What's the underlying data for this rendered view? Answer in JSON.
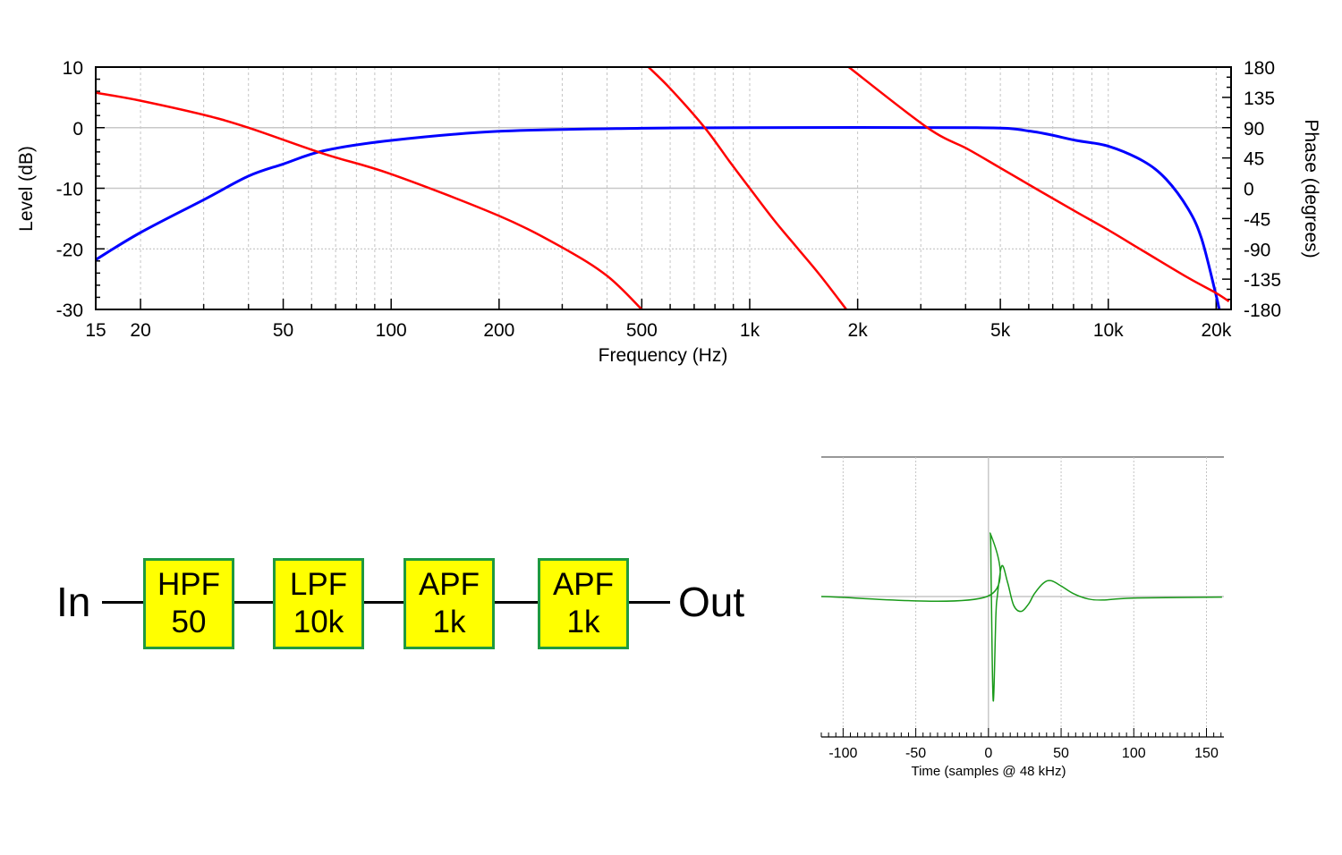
{
  "chart_data": [
    {
      "type": "line",
      "xlabel": "Frequency (Hz)",
      "ylabel": "Level (dB)",
      "y2label": "Phase (degrees)",
      "xscale": "log",
      "xlim": [
        15,
        22000
      ],
      "ylim": [
        -30,
        10
      ],
      "y2lim": [
        -180,
        180
      ],
      "grid": true,
      "xticks": [
        {
          "v": 15,
          "label": "15"
        },
        {
          "v": 20,
          "label": "20"
        },
        {
          "v": 50,
          "label": "50"
        },
        {
          "v": 100,
          "label": "100"
        },
        {
          "v": 200,
          "label": "200"
        },
        {
          "v": 500,
          "label": "500"
        },
        {
          "v": 1000,
          "label": "1k"
        },
        {
          "v": 2000,
          "label": "2k"
        },
        {
          "v": 5000,
          "label": "5k"
        },
        {
          "v": 10000,
          "label": "10k"
        },
        {
          "v": 20000,
          "label": "20k"
        }
      ],
      "yticks": [
        "10",
        "0",
        "-10",
        "-20",
        "-30"
      ],
      "y2ticks": [
        "180",
        "135",
        "90",
        "45",
        "0",
        "-45",
        "-90",
        "-135",
        "-180"
      ],
      "series": [
        {
          "quantity": "level",
          "axis": "left",
          "color": "#0000ff",
          "points": [
            [
              15,
              -21.8
            ],
            [
              20,
              -17.3
            ],
            [
              30,
              -11.9
            ],
            [
              40,
              -8.0
            ],
            [
              50,
              -6.0
            ],
            [
              65,
              -3.8
            ],
            [
              100,
              -2.1
            ],
            [
              200,
              -0.6
            ],
            [
              500,
              -0.1
            ],
            [
              1000,
              0
            ],
            [
              4300,
              0
            ],
            [
              6080,
              -0.6
            ],
            [
              8130,
              -2.1
            ],
            [
              10000,
              -3.05
            ],
            [
              12500,
              -5.5
            ],
            [
              14500,
              -8.5
            ],
            [
              16700,
              -13.4
            ],
            [
              18200,
              -18.3
            ],
            [
              19900,
              -27.2
            ],
            [
              20400,
              -30
            ]
          ]
        },
        {
          "quantity": "phase",
          "axis": "right",
          "color": "#ff0000",
          "segments": [
            [
              [
                15,
                142
              ],
              [
                20,
                130
              ],
              [
                30,
                109
              ],
              [
                40,
                90
              ],
              [
                65,
                51
              ],
              [
                100,
                21
              ],
              [
                200,
                -41
              ],
              [
                300,
                -88
              ],
              [
                400,
                -130
              ],
              [
                500,
                -180
              ]
            ],
            [
              [
                522,
                180
              ],
              [
                603,
                147
              ],
              [
                749,
                90
              ],
              [
                878,
                40
              ],
              [
                1000,
                0
              ],
              [
                1172,
                -48
              ],
              [
                1354,
                -88
              ],
              [
                1565,
                -128
              ],
              [
                1860,
                -180
              ]
            ],
            [
              [
                1889,
                180
              ],
              [
                3130,
                90
              ],
              [
                4060,
                58
              ],
              [
                4970,
                31
              ],
              [
                6440,
                -4
              ],
              [
                8130,
                -35
              ],
              [
                10000,
                -62
              ],
              [
                12500,
                -93
              ],
              [
                16700,
                -133
              ],
              [
                19900,
                -155
              ],
              [
                21700,
                -168
              ]
            ]
          ]
        }
      ]
    },
    {
      "type": "line",
      "xlabel": "Time (samples @ 48 kHz)",
      "xlim": [
        -115,
        162
      ],
      "ylim": [
        -1,
        1
      ],
      "grid": true,
      "xticks": [
        {
          "v": -100,
          "label": "-100"
        },
        {
          "v": -50,
          "label": "-50"
        },
        {
          "v": 0,
          "label": "0"
        },
        {
          "v": 50,
          "label": "50"
        },
        {
          "v": 100,
          "label": "100"
        },
        {
          "v": 150,
          "label": "150"
        }
      ],
      "series": [
        {
          "color": "#1a9a1a",
          "points": [
            [
              -115,
              0
            ],
            [
              -1,
              0
            ],
            [
              1.2,
              0.452
            ],
            [
              2,
              0
            ],
            [
              3.3,
              -0.743
            ],
            [
              5.1,
              -0.14
            ],
            [
              6.1,
              0
            ],
            [
              9.2,
              0.219
            ],
            [
              13.3,
              0.096
            ],
            [
              17.4,
              -0.064
            ],
            [
              22.5,
              -0.106
            ],
            [
              27.6,
              -0.053
            ],
            [
              31.7,
              0.021
            ],
            [
              37.9,
              0.096
            ],
            [
              43,
              0.113
            ],
            [
              50.2,
              0.074
            ],
            [
              58.4,
              0.021
            ],
            [
              68.6,
              -0.017
            ],
            [
              78.8,
              -0.025
            ],
            [
              99.3,
              -0.011
            ],
            [
              160.7,
              -0.004
            ]
          ]
        }
      ]
    }
  ],
  "diagram": {
    "input_label": "In",
    "output_label": "Out",
    "blocks": [
      {
        "line1": "HPF",
        "line2": "50"
      },
      {
        "line1": "LPF",
        "line2": "10k"
      },
      {
        "line1": "APF",
        "line2": "1k"
      },
      {
        "line1": "APF",
        "line2": "1k"
      }
    ],
    "block_fill": "#ffff00",
    "block_border": "#1f9a3f"
  }
}
